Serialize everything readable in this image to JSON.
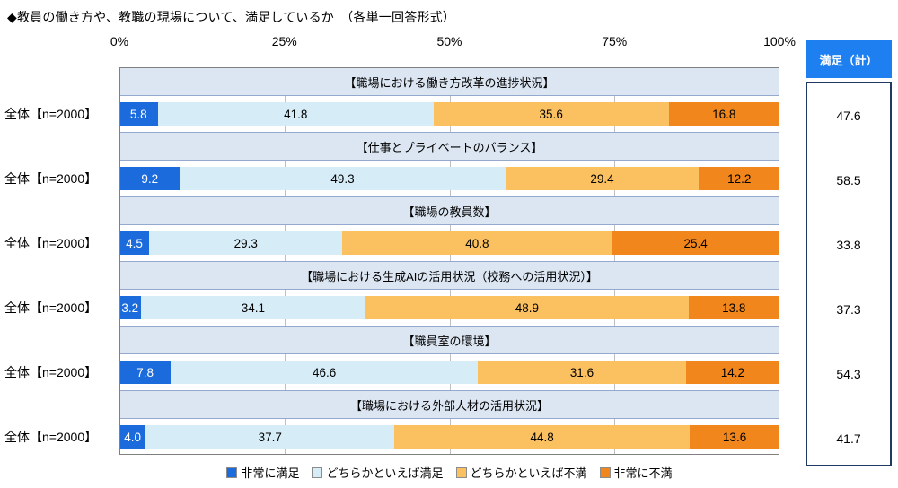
{
  "title": "◆教員の働き方や、教職の現場について、満足しているか　（各単一回答形式）",
  "axis_ticks": [
    "0%",
    "25%",
    "50%",
    "75%",
    "100%"
  ],
  "legend": [
    {
      "label": "非常に満足",
      "color": "#1b6bdc",
      "text_color": "#ffffff"
    },
    {
      "label": "どちらかといえば満足",
      "color": "#d6edf8",
      "text_color": "#000000"
    },
    {
      "label": "どちらかといえば不満",
      "color": "#fbc161",
      "text_color": "#000000"
    },
    {
      "label": "非常に不満",
      "color": "#f0861c",
      "text_color": "#000000"
    }
  ],
  "chart_data": {
    "type": "bar",
    "stacked": true,
    "orientation": "horizontal",
    "unit": "%",
    "xlim": [
      0,
      100
    ],
    "x_ticks": [
      0,
      25,
      50,
      75,
      100
    ],
    "grid": true,
    "legend_position": "bottom",
    "title": "◆教員の働き方や、教職の現場について、満足しているか　（各単一回答形式）",
    "row_label": "全体【n=2000】",
    "categories": [
      "【職場における働き方改革の進捗状況】",
      "【仕事とプライベートのバランス】",
      "【職場の教員数】",
      "【職場における生成AIの活用状況（校務への活用状況）】",
      "【職員室の環境】",
      "【職場における外部人材の活用状況】"
    ],
    "series": [
      {
        "name": "非常に満足",
        "values": [
          5.8,
          9.2,
          4.5,
          3.2,
          7.8,
          4.0
        ]
      },
      {
        "name": "どちらかといえば満足",
        "values": [
          41.8,
          49.3,
          29.3,
          34.1,
          46.6,
          37.7
        ]
      },
      {
        "name": "どちらかといえば不満",
        "values": [
          35.6,
          29.4,
          40.8,
          48.9,
          31.6,
          44.8
        ]
      },
      {
        "name": "非常に不満",
        "values": [
          16.8,
          12.2,
          25.4,
          13.8,
          14.2,
          13.6
        ]
      }
    ],
    "satisfied_total": {
      "label": "満足（計）",
      "values": [
        47.6,
        58.5,
        33.8,
        37.3,
        54.3,
        41.7
      ]
    }
  },
  "colors": {
    "summary_header_bg": "#1e7ff0",
    "summary_box_border": "#1f3864",
    "section_header_bg": "#dce6f2",
    "section_header_border": "#95a8ce",
    "plot_border": "#808080",
    "gridline": "#bfbfbf"
  }
}
